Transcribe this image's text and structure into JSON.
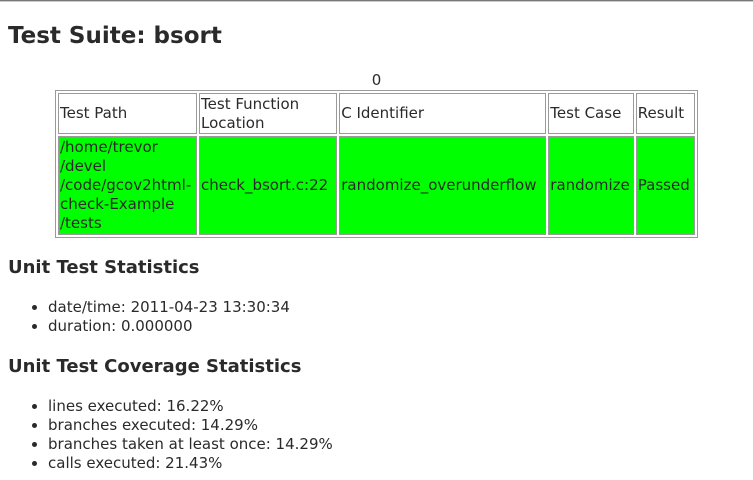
{
  "suite": {
    "title": "Test Suite: bsort"
  },
  "table": {
    "caption": "0",
    "headers": [
      "Test Path",
      "Test Function Location",
      "C Identifier",
      "Test Case",
      "Result"
    ],
    "rows": [
      {
        "test_path": "/home/trevor /devel /code/gcov2html-check-Example /tests",
        "function_location": "check_bsort.c:22",
        "c_identifier": "randomize_overunderflow",
        "test_case": "randomize",
        "result": "Passed",
        "status_color": "#00ff00"
      }
    ]
  },
  "unit_stats": {
    "heading": "Unit Test Statistics",
    "items": [
      "date/time: 2011-04-23 13:30:34",
      "duration: 0.000000"
    ]
  },
  "coverage_stats": {
    "heading": "Unit Test Coverage Statistics",
    "items": [
      "lines executed: 16.22%",
      "branches executed: 14.29%",
      "branches taken at least once: 14.29%",
      "calls executed: 21.43%"
    ]
  }
}
